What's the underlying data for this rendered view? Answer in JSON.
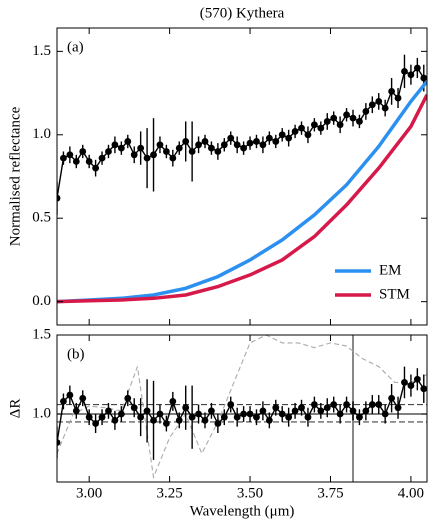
{
  "chart_data": [
    {
      "type": "errorbar",
      "title": "(570) Kythera",
      "panel_label": "(a)",
      "ylabel": "Normalised reflectance",
      "xlim": [
        2.9,
        4.05
      ],
      "ylim": [
        -0.14,
        1.64
      ],
      "xticks": [
        3,
        3.25,
        3.5,
        3.75,
        4
      ],
      "yticks": [
        {
          "value": 0,
          "label": "0.0"
        },
        0.5,
        {
          "value": 1,
          "label": "1.0"
        },
        1.5
      ],
      "legend": "lower right",
      "series": [
        {
          "style": "errorbar",
          "color": "#000000",
          "x": [
            2.9,
            2.92,
            2.94,
            2.96,
            2.98,
            3.0,
            3.02,
            3.04,
            3.06,
            3.08,
            3.1,
            3.12,
            3.14,
            3.16,
            3.18,
            3.2,
            3.22,
            3.24,
            3.26,
            3.28,
            3.3,
            3.32,
            3.34,
            3.36,
            3.38,
            3.4,
            3.42,
            3.44,
            3.46,
            3.48,
            3.5,
            3.52,
            3.54,
            3.56,
            3.58,
            3.6,
            3.62,
            3.64,
            3.66,
            3.68,
            3.7,
            3.72,
            3.74,
            3.76,
            3.78,
            3.8,
            3.82,
            3.84,
            3.86,
            3.88,
            3.9,
            3.92,
            3.94,
            3.96,
            3.98,
            4.0,
            4.02,
            4.04
          ],
          "values": [
            0.62,
            0.86,
            0.88,
            0.84,
            0.9,
            0.84,
            0.8,
            0.86,
            0.9,
            0.94,
            0.92,
            0.96,
            0.88,
            0.92,
            0.86,
            0.88,
            0.94,
            0.9,
            0.86,
            0.92,
            0.96,
            0.9,
            0.94,
            0.96,
            0.92,
            0.9,
            0.94,
            0.98,
            0.94,
            0.92,
            0.95,
            0.96,
            0.94,
            0.98,
            0.96,
            1.0,
            0.98,
            1.02,
            1.04,
            1.0,
            1.06,
            1.04,
            1.08,
            1.1,
            1.06,
            1.12,
            1.1,
            1.08,
            1.14,
            1.18,
            1.2,
            1.16,
            1.26,
            1.22,
            1.38,
            1.36,
            1.4,
            1.34
          ],
          "errors": [
            0.1,
            0.04,
            0.05,
            0.04,
            0.04,
            0.04,
            0.05,
            0.04,
            0.04,
            0.05,
            0.04,
            0.04,
            0.05,
            0.1,
            0.18,
            0.22,
            0.05,
            0.04,
            0.05,
            0.04,
            0.12,
            0.18,
            0.05,
            0.04,
            0.04,
            0.05,
            0.04,
            0.04,
            0.05,
            0.04,
            0.04,
            0.04,
            0.05,
            0.04,
            0.04,
            0.04,
            0.05,
            0.04,
            0.04,
            0.05,
            0.04,
            0.04,
            0.05,
            0.04,
            0.05,
            0.04,
            0.05,
            0.04,
            0.05,
            0.05,
            0.05,
            0.05,
            0.08,
            0.06,
            0.1,
            0.06,
            0.06,
            0.08
          ]
        },
        {
          "name": "EM",
          "style": "line",
          "color": "#2b90f0",
          "x": [
            2.9,
            3.0,
            3.1,
            3.2,
            3.3,
            3.4,
            3.5,
            3.6,
            3.7,
            3.8,
            3.9,
            4.0,
            4.05
          ],
          "values": [
            0.0,
            0.01,
            0.02,
            0.04,
            0.08,
            0.15,
            0.25,
            0.37,
            0.52,
            0.7,
            0.93,
            1.2,
            1.32
          ]
        },
        {
          "name": "STM",
          "style": "line",
          "color": "#d7194a",
          "x": [
            2.9,
            3.0,
            3.1,
            3.2,
            3.3,
            3.4,
            3.5,
            3.6,
            3.7,
            3.8,
            3.9,
            4.0,
            4.05
          ],
          "values": [
            0.0,
            0.005,
            0.01,
            0.02,
            0.04,
            0.09,
            0.16,
            0.25,
            0.39,
            0.58,
            0.8,
            1.05,
            1.24
          ]
        }
      ]
    },
    {
      "type": "errorbar",
      "panel_label": "(b)",
      "ylabel": "ΔR",
      "xlabel": "Wavelength (μm)",
      "xlim": [
        2.9,
        4.05
      ],
      "ylim": [
        0.57,
        1.5
      ],
      "xticks": [
        {
          "value": 3,
          "label": "3.00"
        },
        3.25,
        {
          "value": 3.5,
          "label": "3.50"
        },
        3.75,
        {
          "value": 4,
          "label": "4.00"
        }
      ],
      "yticks": [
        {
          "value": 1,
          "label": "1.0"
        },
        {
          "value": 1.5,
          "label": "1.5"
        }
      ],
      "hlines": [
        {
          "value": 1,
          "style": "solid"
        },
        {
          "value": 1.06,
          "style": "dashed"
        },
        {
          "value": 0.95,
          "style": "dashed"
        }
      ],
      "vline": {
        "value": 3.82,
        "color": "#888888"
      },
      "series": [
        {
          "style": "dashed",
          "color": "#aaaaaa",
          "x": [
            2.9,
            2.95,
            3.0,
            3.05,
            3.1,
            3.15,
            3.2,
            3.25,
            3.3,
            3.35,
            3.4,
            3.45,
            3.5,
            3.55,
            3.6,
            3.65,
            3.7,
            3.75,
            3.8,
            3.85,
            3.9,
            3.95,
            4.0,
            4.05
          ],
          "values": [
            0.75,
            1.0,
            1.05,
            1.04,
            1.02,
            1.3,
            0.6,
            0.85,
            1.0,
            0.75,
            0.95,
            1.2,
            1.45,
            1.5,
            1.45,
            1.45,
            1.42,
            1.45,
            1.43,
            1.35,
            1.3,
            1.2,
            1.2,
            1.25
          ]
        },
        {
          "style": "errorbar",
          "color": "#000000",
          "x": [
            2.9,
            2.92,
            2.94,
            2.96,
            2.98,
            3.0,
            3.02,
            3.04,
            3.06,
            3.08,
            3.1,
            3.12,
            3.14,
            3.16,
            3.18,
            3.2,
            3.22,
            3.24,
            3.26,
            3.28,
            3.3,
            3.32,
            3.34,
            3.36,
            3.38,
            3.4,
            3.42,
            3.44,
            3.46,
            3.48,
            3.5,
            3.52,
            3.54,
            3.56,
            3.58,
            3.6,
            3.62,
            3.64,
            3.66,
            3.68,
            3.7,
            3.72,
            3.74,
            3.76,
            3.78,
            3.8,
            3.82,
            3.84,
            3.86,
            3.88,
            3.9,
            3.92,
            3.94,
            3.96,
            3.98,
            4.0,
            4.02,
            4.04
          ],
          "values": [
            0.82,
            1.08,
            1.12,
            1.02,
            1.1,
            0.98,
            0.94,
            0.98,
            1.02,
            0.96,
            1.0,
            1.1,
            1.04,
            0.98,
            1.02,
            0.96,
            1.0,
            0.94,
            1.08,
            0.96,
            1.04,
            0.98,
            1.0,
            0.96,
            1.02,
            0.94,
            0.98,
            1.06,
            0.98,
            1.0,
            1.0,
            0.98,
            1.02,
            0.96,
            1.04,
            1.0,
            0.98,
            1.02,
            1.04,
            0.98,
            1.06,
            1.02,
            1.04,
            1.06,
            1.0,
            1.06,
            1.02,
            0.98,
            1.02,
            1.06,
            1.06,
            1.0,
            1.1,
            1.04,
            1.2,
            1.18,
            1.22,
            1.16
          ],
          "errors": [
            0.1,
            0.05,
            0.06,
            0.05,
            0.05,
            0.05,
            0.06,
            0.05,
            0.05,
            0.06,
            0.05,
            0.05,
            0.06,
            0.12,
            0.2,
            0.25,
            0.06,
            0.05,
            0.06,
            0.05,
            0.14,
            0.2,
            0.06,
            0.05,
            0.05,
            0.06,
            0.05,
            0.05,
            0.06,
            0.05,
            0.05,
            0.05,
            0.06,
            0.05,
            0.05,
            0.05,
            0.06,
            0.05,
            0.05,
            0.06,
            0.05,
            0.05,
            0.06,
            0.05,
            0.06,
            0.05,
            0.06,
            0.05,
            0.06,
            0.06,
            0.06,
            0.06,
            0.09,
            0.07,
            0.1,
            0.07,
            0.07,
            0.09
          ]
        }
      ]
    }
  ]
}
